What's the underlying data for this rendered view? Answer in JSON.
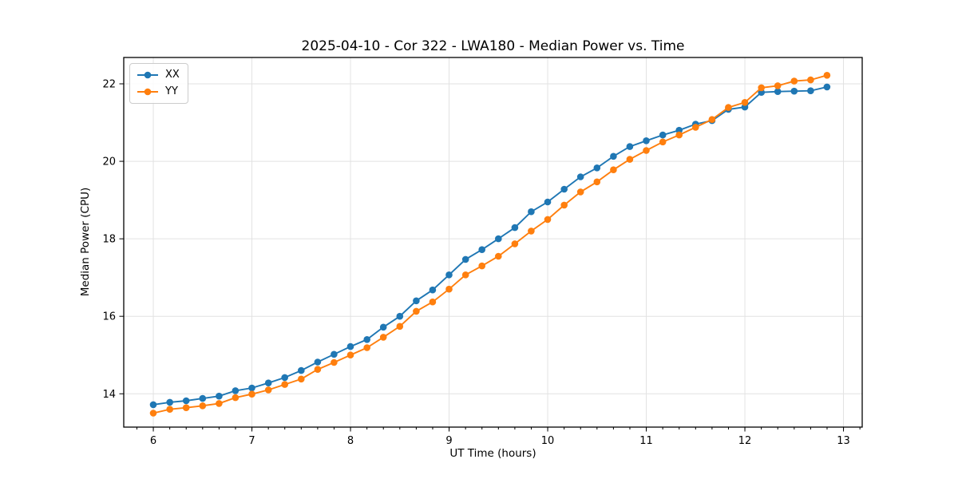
{
  "chart_data": {
    "type": "line",
    "title": "2025-04-10 - Cor 322 - LWA180 - Median Power vs. Time",
    "xlabel": "UT Time (hours)",
    "ylabel": "Median Power (CPU)",
    "xlim": [
      5.7,
      13.19
    ],
    "ylim": [
      13.14,
      22.68
    ],
    "xticks": [
      6,
      7,
      8,
      9,
      10,
      11,
      12,
      13
    ],
    "yticks": [
      14,
      16,
      18,
      20,
      22
    ],
    "x_minor_step_hours": 0.16667,
    "grid": true,
    "grid_color": "#e2e2e2",
    "legend_position": "upper-left",
    "x": [
      6.0,
      6.167,
      6.333,
      6.5,
      6.667,
      6.833,
      7.0,
      7.167,
      7.333,
      7.5,
      7.667,
      7.833,
      8.0,
      8.167,
      8.333,
      8.5,
      8.667,
      8.833,
      9.0,
      9.167,
      9.333,
      9.5,
      9.667,
      9.833,
      10.0,
      10.167,
      10.333,
      10.5,
      10.667,
      10.833,
      11.0,
      11.167,
      11.333,
      11.5,
      11.667,
      11.833,
      12.0,
      12.167,
      12.333,
      12.5,
      12.667,
      12.833
    ],
    "series": [
      {
        "name": "XX",
        "color": "#1f77b4",
        "values": [
          13.72,
          13.78,
          13.82,
          13.88,
          13.94,
          14.08,
          14.15,
          14.28,
          14.42,
          14.6,
          14.82,
          15.02,
          15.22,
          15.4,
          15.72,
          16.0,
          16.4,
          16.68,
          17.07,
          17.47,
          17.72,
          18.0,
          18.29,
          18.7,
          18.95,
          19.28,
          19.6,
          19.83,
          20.13,
          20.38,
          20.53,
          20.68,
          20.8,
          20.96,
          21.05,
          21.34,
          21.4,
          21.78,
          21.8,
          21.81,
          21.82,
          21.92
        ]
      },
      {
        "name": "YY",
        "color": "#ff7f0e",
        "values": [
          13.5,
          13.6,
          13.64,
          13.69,
          13.75,
          13.9,
          13.99,
          14.1,
          14.24,
          14.38,
          14.63,
          14.81,
          15.0,
          15.19,
          15.46,
          15.74,
          16.13,
          16.37,
          16.7,
          17.07,
          17.3,
          17.55,
          17.87,
          18.2,
          18.5,
          18.87,
          19.21,
          19.47,
          19.78,
          20.05,
          20.28,
          20.5,
          20.68,
          20.88,
          21.08,
          21.39,
          21.52,
          21.9,
          21.95,
          22.07,
          22.1,
          22.22
        ]
      }
    ]
  }
}
